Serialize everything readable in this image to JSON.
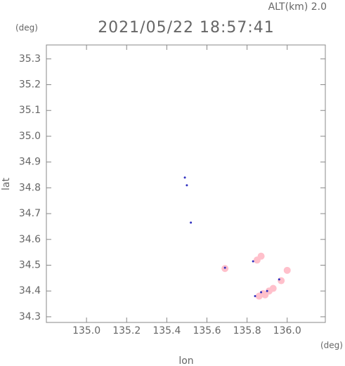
{
  "chart_data": {
    "type": "scatter",
    "title": "2021/05/22 18:57:41",
    "subtitle": "ALT(km) 2.0",
    "x_label": "lon",
    "y_label": "lat",
    "x_unit": "(deg)",
    "y_unit": "(deg)",
    "xlim": [
      134.8,
      136.19
    ],
    "ylim": [
      34.278,
      35.354
    ],
    "xticks": [
      {
        "value": 135.0,
        "label": "135.0"
      },
      135.2,
      135.4,
      135.6,
      135.8,
      {
        "value": 136.0,
        "label": "136.0"
      }
    ],
    "yticks": [
      34.3,
      34.4,
      34.5,
      34.6,
      34.7,
      34.8,
      34.9,
      {
        "value": 35.0,
        "label": "35.0"
      },
      35.1,
      35.2,
      35.3
    ],
    "series": [
      {
        "color": "#ffc0cb",
        "x": [
          135.85,
          135.87,
          135.69,
          136.0,
          135.97,
          135.88,
          135.91,
          135.93,
          135.86,
          135.89
        ],
        "y": [
          34.52,
          34.535,
          34.487,
          34.48,
          34.44,
          34.39,
          34.4,
          34.41,
          34.38,
          34.385
        ]
      },
      {
        "color": "#3030c0",
        "x": [
          135.49,
          135.5,
          135.52,
          135.83,
          135.84,
          135.87,
          135.9,
          135.96,
          135.69
        ],
        "y": [
          34.84,
          34.81,
          34.665,
          34.515,
          34.38,
          34.395,
          34.4,
          34.445,
          34.49
        ]
      }
    ]
  }
}
